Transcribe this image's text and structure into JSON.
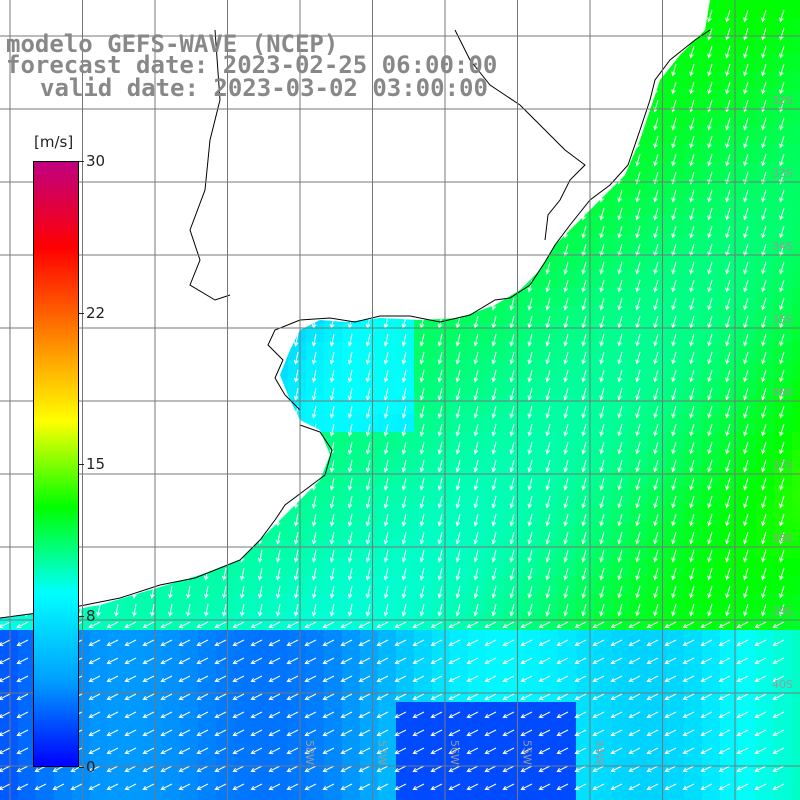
{
  "title": {
    "line1": "modelo GEFS-WAVE (NCEP)",
    "line2": "forecast date: 2023-02-25 06:00:00",
    "line3": "valid date: 2023-03-02 03:00:00"
  },
  "colorbar": {
    "unit": "[m/s]",
    "ticks": [
      "30",
      "22",
      "15",
      "8",
      "0"
    ],
    "min": 0,
    "max": 30,
    "colors": [
      "#0000ff",
      "#00a0ff",
      "#00ffff",
      "#00ff00",
      "#ffff00",
      "#ff8000",
      "#ff0000",
      "#c00080"
    ]
  },
  "grid": {
    "lat_labels": [
      "32S",
      "33S",
      "34S",
      "35S",
      "36S",
      "37S",
      "38S",
      "39S",
      "40S"
    ],
    "lon_labels": [
      "58W",
      "57W",
      "56W",
      "55W",
      "54W"
    ]
  },
  "field": {
    "variable": "wind speed",
    "units": "m/s",
    "ocean_color": "#00e8e0",
    "land_color": "#ffffff"
  }
}
